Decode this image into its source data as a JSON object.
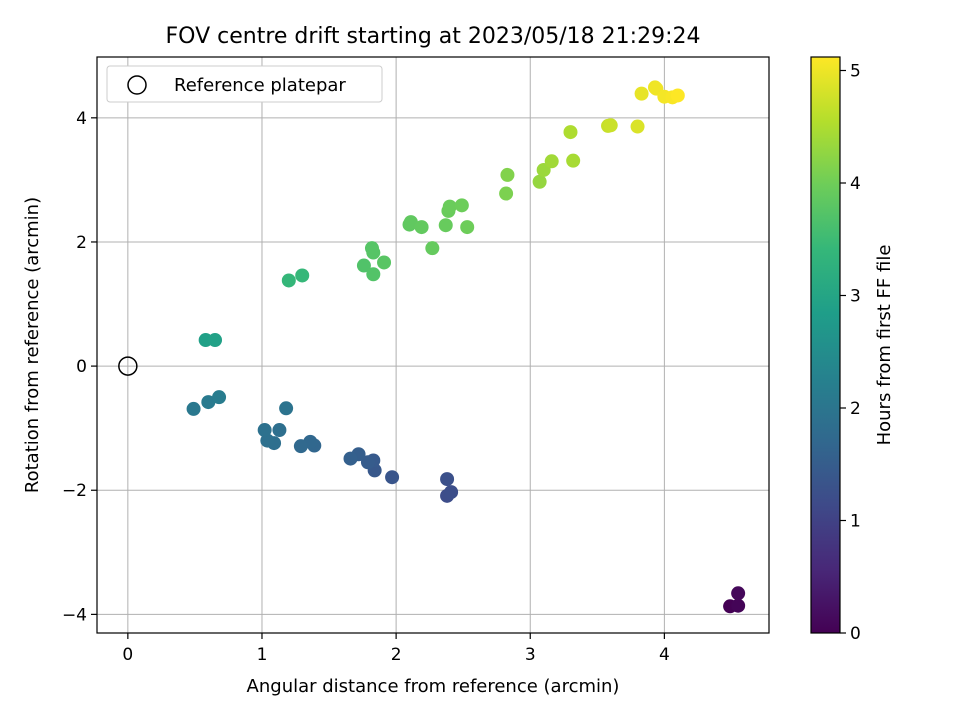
{
  "chart_data": {
    "type": "scatter",
    "title": "FOV centre drift starting at 2023/05/18 21:29:24",
    "xlabel": "Angular distance from reference (arcmin)",
    "ylabel": "Rotation from reference (arcmin)",
    "xlim": [
      -0.23,
      4.78
    ],
    "ylim": [
      -4.3,
      4.98
    ],
    "xticks": [
      0,
      1,
      2,
      3,
      4
    ],
    "yticks": [
      -4,
      -2,
      0,
      2,
      4
    ],
    "grid": true,
    "legend": {
      "placement": "top-left",
      "entries": [
        "Reference platepar"
      ]
    },
    "colorbar": {
      "label": "Hours from first FF file",
      "colormap": "viridis",
      "range": [
        0,
        5.12
      ],
      "ticks": [
        0,
        1,
        2,
        3,
        4,
        5
      ]
    },
    "reference_point": {
      "x": 0,
      "y": 0,
      "label": "Reference platepar"
    },
    "points": [
      {
        "x": 4.49,
        "y": -3.87,
        "hours": 0.0
      },
      {
        "x": 4.55,
        "y": -3.86,
        "hours": 0.05
      },
      {
        "x": 4.55,
        "y": -3.66,
        "hours": 0.1
      },
      {
        "x": 2.38,
        "y": -2.09,
        "hours": 1.2
      },
      {
        "x": 2.41,
        "y": -2.03,
        "hours": 1.22
      },
      {
        "x": 2.38,
        "y": -1.82,
        "hours": 1.25
      },
      {
        "x": 1.97,
        "y": -1.79,
        "hours": 1.35
      },
      {
        "x": 1.84,
        "y": -1.68,
        "hours": 1.4
      },
      {
        "x": 1.83,
        "y": -1.52,
        "hours": 1.45
      },
      {
        "x": 1.79,
        "y": -1.55,
        "hours": 1.48
      },
      {
        "x": 1.72,
        "y": -1.42,
        "hours": 1.52
      },
      {
        "x": 1.66,
        "y": -1.49,
        "hours": 1.56
      },
      {
        "x": 1.39,
        "y": -1.28,
        "hours": 1.68
      },
      {
        "x": 1.36,
        "y": -1.22,
        "hours": 1.7
      },
      {
        "x": 1.29,
        "y": -1.29,
        "hours": 1.72
      },
      {
        "x": 1.13,
        "y": -1.03,
        "hours": 1.85
      },
      {
        "x": 1.09,
        "y": -1.24,
        "hours": 1.87
      },
      {
        "x": 1.04,
        "y": -1.2,
        "hours": 1.88
      },
      {
        "x": 1.02,
        "y": -1.03,
        "hours": 1.9
      },
      {
        "x": 1.18,
        "y": -0.68,
        "hours": 1.95
      },
      {
        "x": 0.49,
        "y": -0.69,
        "hours": 2.05
      },
      {
        "x": 0.6,
        "y": -0.58,
        "hours": 2.1
      },
      {
        "x": 0.68,
        "y": -0.5,
        "hours": 2.15
      },
      {
        "x": 0.58,
        "y": 0.42,
        "hours": 2.9
      },
      {
        "x": 0.65,
        "y": 0.42,
        "hours": 2.92
      },
      {
        "x": 1.2,
        "y": 1.38,
        "hours": 3.4
      },
      {
        "x": 1.3,
        "y": 1.46,
        "hours": 3.42
      },
      {
        "x": 1.76,
        "y": 1.62,
        "hours": 3.7
      },
      {
        "x": 1.83,
        "y": 1.48,
        "hours": 3.72
      },
      {
        "x": 1.82,
        "y": 1.9,
        "hours": 3.75
      },
      {
        "x": 1.83,
        "y": 1.83,
        "hours": 3.76
      },
      {
        "x": 1.91,
        "y": 1.67,
        "hours": 3.78
      },
      {
        "x": 2.1,
        "y": 2.28,
        "hours": 3.85
      },
      {
        "x": 2.11,
        "y": 2.32,
        "hours": 3.86
      },
      {
        "x": 2.19,
        "y": 2.24,
        "hours": 3.88
      },
      {
        "x": 2.27,
        "y": 1.9,
        "hours": 3.9
      },
      {
        "x": 2.37,
        "y": 2.27,
        "hours": 3.92
      },
      {
        "x": 2.39,
        "y": 2.5,
        "hours": 3.94
      },
      {
        "x": 2.4,
        "y": 2.57,
        "hours": 3.95
      },
      {
        "x": 2.49,
        "y": 2.59,
        "hours": 3.97
      },
      {
        "x": 2.53,
        "y": 2.24,
        "hours": 3.98
      },
      {
        "x": 2.82,
        "y": 2.78,
        "hours": 4.1
      },
      {
        "x": 2.83,
        "y": 3.08,
        "hours": 4.15
      },
      {
        "x": 3.07,
        "y": 2.97,
        "hours": 4.3
      },
      {
        "x": 3.1,
        "y": 3.16,
        "hours": 4.35
      },
      {
        "x": 3.16,
        "y": 3.3,
        "hours": 4.4
      },
      {
        "x": 3.3,
        "y": 3.77,
        "hours": 4.5
      },
      {
        "x": 3.32,
        "y": 3.31,
        "hours": 4.45
      },
      {
        "x": 3.58,
        "y": 3.87,
        "hours": 4.7
      },
      {
        "x": 3.6,
        "y": 3.88,
        "hours": 4.72
      },
      {
        "x": 3.8,
        "y": 3.86,
        "hours": 4.85
      },
      {
        "x": 3.83,
        "y": 4.39,
        "hours": 4.95
      },
      {
        "x": 3.93,
        "y": 4.49,
        "hours": 5.0
      },
      {
        "x": 3.94,
        "y": 4.47,
        "hours": 5.02
      },
      {
        "x": 4.0,
        "y": 4.34,
        "hours": 5.05
      },
      {
        "x": 4.06,
        "y": 4.33,
        "hours": 5.08
      },
      {
        "x": 4.1,
        "y": 4.36,
        "hours": 5.12
      }
    ]
  }
}
